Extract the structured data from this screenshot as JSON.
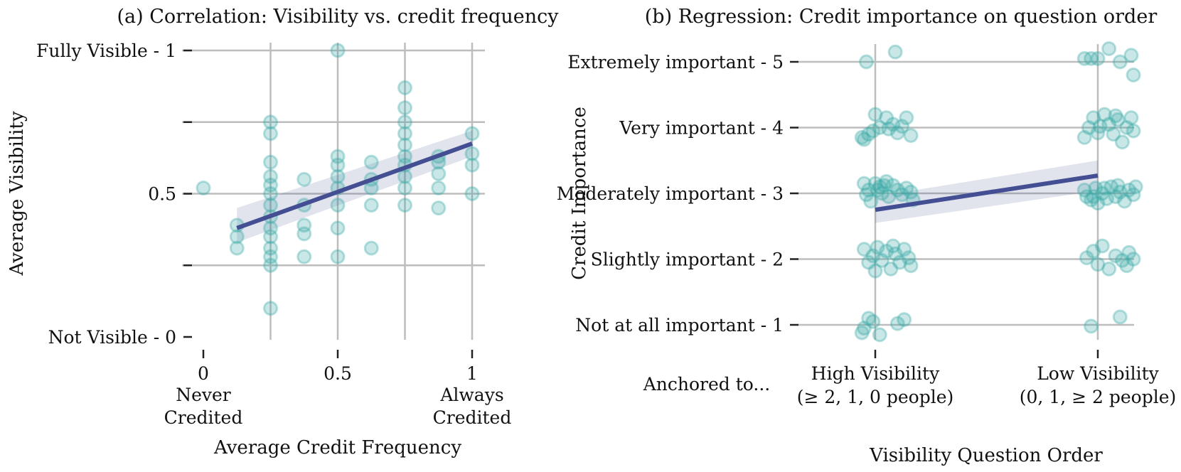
{
  "colors": {
    "point": "#3aaaa5",
    "line": "#434f92",
    "band": "#434f92"
  },
  "chart_data": [
    {
      "type": "scatter",
      "title": "(a) Correlation: Visibility vs. credit frequency",
      "xlabel": "Average Credit Frequency",
      "ylabel": "Average Visibility",
      "xlim": [
        0,
        1
      ],
      "ylim": [
        0,
        1
      ],
      "xticks": [
        {
          "value": 0,
          "label": "0",
          "sublabel1": "Never",
          "sublabel2": "Credited"
        },
        {
          "value": 0.5,
          "label": "0.5"
        },
        {
          "value": 1,
          "label": "1",
          "sublabel1": "Always",
          "sublabel2": "Credited"
        }
      ],
      "yticks": [
        {
          "value": 0,
          "label": "Not Visible - 0"
        },
        {
          "value": 0.25,
          "label": ""
        },
        {
          "value": 0.5,
          "label": "0.5"
        },
        {
          "value": 0.75,
          "label": ""
        },
        {
          "value": 1,
          "label": "Fully Visible - 1"
        }
      ],
      "points": [
        [
          0.0,
          0.52
        ],
        [
          0.125,
          0.39
        ],
        [
          0.125,
          0.35
        ],
        [
          0.125,
          0.31
        ],
        [
          0.25,
          0.75
        ],
        [
          0.25,
          0.71
        ],
        [
          0.25,
          0.61
        ],
        [
          0.25,
          0.56
        ],
        [
          0.25,
          0.53
        ],
        [
          0.25,
          0.5
        ],
        [
          0.25,
          0.46
        ],
        [
          0.25,
          0.42
        ],
        [
          0.25,
          0.38
        ],
        [
          0.25,
          0.35
        ],
        [
          0.25,
          0.31
        ],
        [
          0.25,
          0.28
        ],
        [
          0.25,
          0.25
        ],
        [
          0.25,
          0.1
        ],
        [
          0.375,
          0.55
        ],
        [
          0.375,
          0.46
        ],
        [
          0.375,
          0.39
        ],
        [
          0.375,
          0.36
        ],
        [
          0.375,
          0.28
        ],
        [
          0.5,
          1.0
        ],
        [
          0.5,
          0.63
        ],
        [
          0.5,
          0.6
        ],
        [
          0.5,
          0.56
        ],
        [
          0.5,
          0.52
        ],
        [
          0.5,
          0.46
        ],
        [
          0.5,
          0.38
        ],
        [
          0.5,
          0.28
        ],
        [
          0.625,
          0.61
        ],
        [
          0.625,
          0.55
        ],
        [
          0.625,
          0.52
        ],
        [
          0.625,
          0.46
        ],
        [
          0.625,
          0.31
        ],
        [
          0.75,
          0.87
        ],
        [
          0.75,
          0.8
        ],
        [
          0.75,
          0.75
        ],
        [
          0.75,
          0.71
        ],
        [
          0.75,
          0.67
        ],
        [
          0.75,
          0.63
        ],
        [
          0.75,
          0.6
        ],
        [
          0.75,
          0.56
        ],
        [
          0.75,
          0.52
        ],
        [
          0.75,
          0.46
        ],
        [
          0.875,
          0.63
        ],
        [
          0.875,
          0.61
        ],
        [
          0.875,
          0.57
        ],
        [
          0.875,
          0.52
        ],
        [
          0.875,
          0.45
        ],
        [
          1.0,
          0.71
        ],
        [
          1.0,
          0.64
        ],
        [
          1.0,
          0.6
        ],
        [
          1.0,
          0.5
        ]
      ],
      "fit": {
        "x": [
          0.125,
          1.0
        ],
        "y": [
          0.38,
          0.675
        ]
      },
      "band": {
        "upper": [
          0.45,
          0.72
        ],
        "lower": [
          0.33,
          0.63
        ]
      }
    },
    {
      "type": "scatter",
      "title": "(b) Regression: Credit importance on question order",
      "xlabel": "Visibility Question Order",
      "ylabel": "Credit Importance",
      "anchor_label": "Anchored to...",
      "xlim": [
        -0.35,
        1.15
      ],
      "ylim": [
        0.55,
        5.45
      ],
      "xticks": [
        {
          "value": 0,
          "label": "High Visibility",
          "sublabel": "(≥ 2, 1, 0 people)"
        },
        {
          "value": 1,
          "label": "Low Visibility",
          "sublabel": "(0, 1,  ≥ 2 people)"
        }
      ],
      "yticks": [
        {
          "value": 5,
          "label": "Extremely important - 5"
        },
        {
          "value": 4,
          "label": "Very important - 4"
        },
        {
          "value": 3,
          "label": "Moderately important - 3"
        },
        {
          "value": 2,
          "label": "Slightly important - 2"
        },
        {
          "value": 1,
          "label": "Not at all important - 1"
        }
      ],
      "points": [
        [
          -0.04,
          5.0
        ],
        [
          0.09,
          5.15
        ],
        [
          0.94,
          5.05
        ],
        [
          0.97,
          5.05
        ],
        [
          1.0,
          5.05
        ],
        [
          1.05,
          5.2
        ],
        [
          1.1,
          5.0
        ],
        [
          1.15,
          5.1
        ],
        [
          1.16,
          4.8
        ],
        [
          -0.05,
          3.82
        ],
        [
          -0.03,
          3.9
        ],
        [
          -0.01,
          3.95
        ],
        [
          0.02,
          4.0
        ],
        [
          0.05,
          4.15
        ],
        [
          0.08,
          4.05
        ],
        [
          0.1,
          3.92
        ],
        [
          0.12,
          4.02
        ],
        [
          0.14,
          4.15
        ],
        [
          0.16,
          3.88
        ],
        [
          0.06,
          3.98
        ],
        [
          -0.06,
          3.85
        ],
        [
          0.0,
          4.2
        ],
        [
          0.94,
          3.85
        ],
        [
          0.96,
          4.0
        ],
        [
          0.98,
          4.15
        ],
        [
          1.0,
          3.92
        ],
        [
          1.03,
          4.2
        ],
        [
          1.05,
          4.05
        ],
        [
          1.07,
          3.9
        ],
        [
          1.09,
          4.12
        ],
        [
          1.11,
          3.78
        ],
        [
          1.13,
          4.0
        ],
        [
          1.15,
          4.15
        ],
        [
          1.16,
          3.95
        ],
        [
          1.01,
          4.02
        ],
        [
          1.08,
          4.18
        ],
        [
          -0.05,
          3.15
        ],
        [
          -0.03,
          3.05
        ],
        [
          -0.02,
          2.88
        ],
        [
          0.0,
          3.15
        ],
        [
          0.02,
          3.1
        ],
        [
          0.03,
          3.0
        ],
        [
          0.05,
          3.18
        ],
        [
          0.06,
          2.95
        ],
        [
          0.08,
          3.12
        ],
        [
          0.1,
          3.05
        ],
        [
          0.12,
          2.98
        ],
        [
          0.14,
          3.08
        ],
        [
          0.16,
          3.02
        ],
        [
          0.17,
          2.9
        ],
        [
          -0.04,
          2.98
        ],
        [
          0.01,
          3.05
        ],
        [
          0.04,
          3.12
        ],
        [
          0.94,
          3.05
        ],
        [
          0.95,
          2.95
        ],
        [
          0.97,
          2.9
        ],
        [
          0.99,
          3.08
        ],
        [
          1.0,
          2.85
        ],
        [
          1.02,
          3.0
        ],
        [
          1.04,
          2.92
        ],
        [
          1.06,
          3.1
        ],
        [
          1.08,
          2.95
        ],
        [
          1.1,
          3.02
        ],
        [
          1.12,
          2.88
        ],
        [
          1.14,
          3.05
        ],
        [
          1.16,
          2.98
        ],
        [
          1.17,
          3.1
        ],
        [
          0.98,
          2.95
        ],
        [
          1.03,
          3.08
        ],
        [
          1.09,
          3.12
        ],
        [
          -0.05,
          2.15
        ],
        [
          -0.03,
          1.95
        ],
        [
          -0.01,
          2.05
        ],
        [
          0.01,
          2.18
        ],
        [
          0.03,
          1.98
        ],
        [
          0.05,
          2.12
        ],
        [
          0.07,
          1.85
        ],
        [
          0.09,
          2.08
        ],
        [
          0.11,
          1.95
        ],
        [
          0.13,
          2.15
        ],
        [
          0.15,
          2.02
        ],
        [
          0.16,
          1.9
        ],
        [
          0.0,
          1.82
        ],
        [
          0.08,
          2.2
        ],
        [
          0.95,
          2.02
        ],
        [
          0.98,
          2.12
        ],
        [
          1.0,
          1.92
        ],
        [
          1.02,
          2.2
        ],
        [
          1.05,
          1.85
        ],
        [
          1.08,
          2.05
        ],
        [
          1.11,
          1.98
        ],
        [
          1.14,
          2.1
        ],
        [
          1.16,
          2.0
        ],
        [
          1.13,
          1.9
        ],
        [
          -0.05,
          0.95
        ],
        [
          -0.03,
          1.1
        ],
        [
          -0.01,
          1.05
        ],
        [
          0.02,
          0.85
        ],
        [
          0.1,
          1.02
        ],
        [
          0.13,
          1.08
        ],
        [
          -0.06,
          0.88
        ],
        [
          0.97,
          0.98
        ],
        [
          1.1,
          1.12
        ]
      ],
      "fit": {
        "x": [
          0.0,
          1.0
        ],
        "y": [
          2.75,
          3.27
        ]
      },
      "band": {
        "upper": [
          2.95,
          3.5
        ],
        "lower": [
          2.55,
          3.04
        ]
      }
    }
  ]
}
